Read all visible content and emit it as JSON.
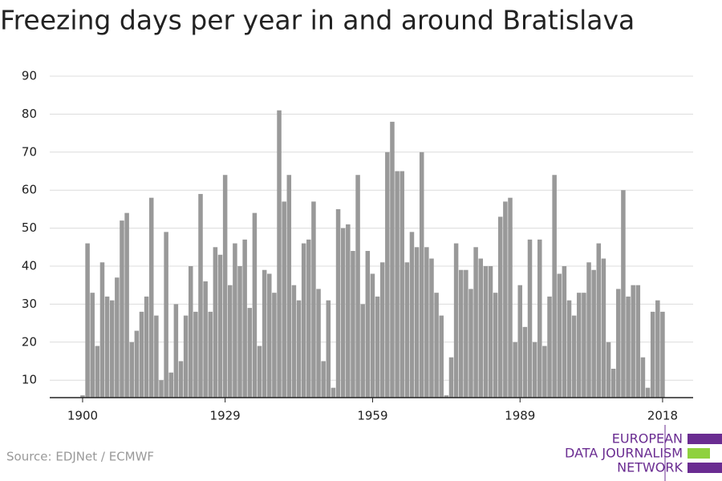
{
  "chart_data": {
    "type": "bar",
    "title": "Freezing days per year in and around Bratislava",
    "source": "Source: EDJNet / ECMWF",
    "logo": [
      "EUROPEAN",
      "DATA JOURNALISM",
      "NETWORK"
    ],
    "color": "#999999",
    "grid": true,
    "x": [
      1900,
      1901,
      1902,
      1903,
      1904,
      1905,
      1906,
      1907,
      1908,
      1909,
      1910,
      1911,
      1912,
      1913,
      1914,
      1915,
      1916,
      1917,
      1918,
      1919,
      1920,
      1921,
      1922,
      1923,
      1924,
      1925,
      1926,
      1927,
      1928,
      1929,
      1930,
      1931,
      1932,
      1933,
      1934,
      1935,
      1936,
      1937,
      1938,
      1939,
      1940,
      1941,
      1942,
      1943,
      1944,
      1945,
      1946,
      1947,
      1948,
      1949,
      1950,
      1951,
      1952,
      1953,
      1954,
      1955,
      1956,
      1957,
      1958,
      1959,
      1960,
      1961,
      1962,
      1963,
      1964,
      1965,
      1966,
      1967,
      1968,
      1969,
      1970,
      1971,
      1972,
      1973,
      1974,
      1975,
      1976,
      1977,
      1978,
      1979,
      1980,
      1981,
      1982,
      1983,
      1984,
      1985,
      1986,
      1987,
      1988,
      1989,
      1990,
      1991,
      1992,
      1993,
      1994,
      1995,
      1996,
      1997,
      1998,
      1999,
      2000,
      2001,
      2002,
      2003,
      2004,
      2005,
      2006,
      2007,
      2008,
      2009,
      2010,
      2011,
      2012,
      2013,
      2014,
      2015,
      2016,
      2017,
      2018
    ],
    "values": [
      6,
      46,
      33,
      19,
      41,
      32,
      31,
      37,
      52,
      54,
      20,
      23,
      28,
      32,
      58,
      27,
      10,
      49,
      12,
      30,
      15,
      27,
      40,
      28,
      59,
      36,
      28,
      45,
      43,
      64,
      35,
      46,
      40,
      47,
      29,
      54,
      19,
      39,
      38,
      33,
      81,
      57,
      64,
      35,
      31,
      46,
      47,
      57,
      34,
      15,
      31,
      8,
      55,
      50,
      51,
      44,
      64,
      30,
      44,
      38,
      32,
      41,
      70,
      78,
      65,
      65,
      41,
      49,
      45,
      70,
      45,
      42,
      33,
      27,
      6,
      16,
      46,
      39,
      39,
      34,
      45,
      42,
      40,
      40,
      33,
      53,
      57,
      58,
      20,
      35,
      24,
      47,
      20,
      47,
      19,
      32,
      64,
      38,
      40,
      31,
      27,
      33,
      33,
      41,
      39,
      46,
      42,
      20,
      13,
      34,
      60,
      32,
      35,
      35,
      16,
      8,
      28,
      31,
      28
    ],
    "xlim": [
      1899.5,
      2018.5
    ],
    "xticks": [
      1900,
      1929,
      1959,
      1989,
      2018
    ],
    "ylim": [
      5.4,
      90
    ],
    "yticks": [
      10,
      20,
      30,
      40,
      50,
      60,
      70,
      80,
      90
    ]
  }
}
